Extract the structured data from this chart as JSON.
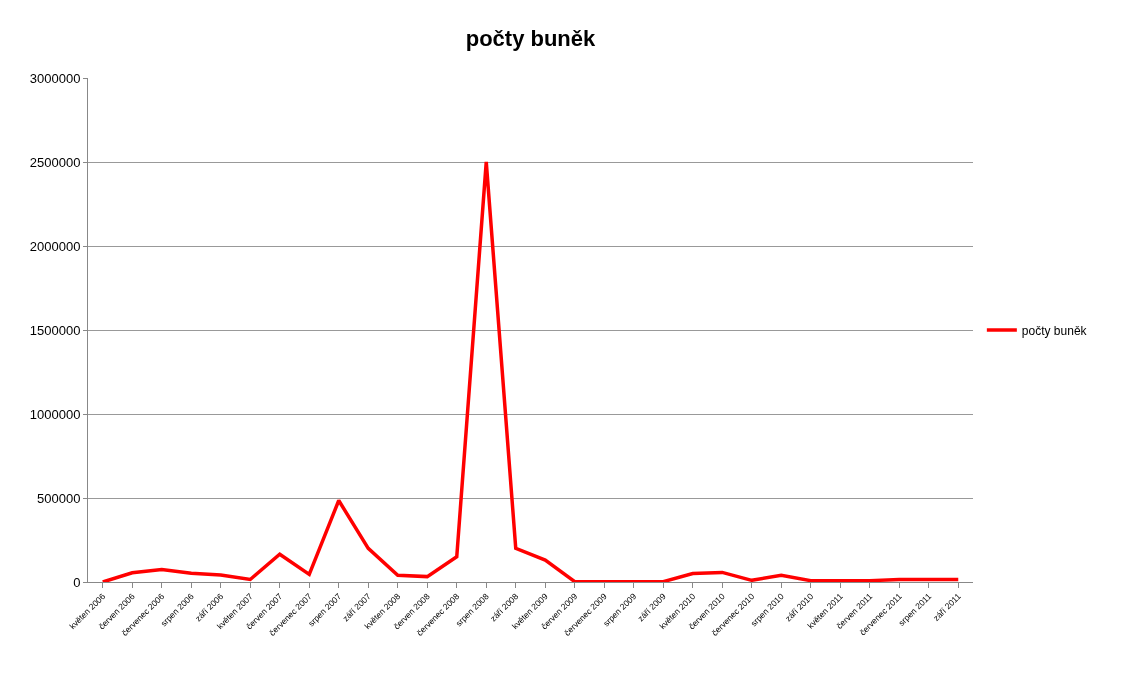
{
  "chart_data": {
    "type": "line",
    "title": "počty buněk",
    "categories": [
      "květen 2006",
      "červen 2006",
      "červenec 2006",
      "srpen 2006",
      "září 2006",
      "květen 2007",
      "červen 2007",
      "červenec 2007",
      "srpen 2007",
      "září 2007",
      "květen 2008",
      "červen 2008",
      "červenec 2008",
      "srpen 2008",
      "září 2008",
      "květen 2009",
      "červen 2009",
      "červenec 2009",
      "srpen 2009",
      "září 2009",
      "květen 2010",
      "červen 2010",
      "červenec 2010",
      "srpen 2010",
      "září 2010",
      "květen 2011",
      "červen 2011",
      "červenec 2011",
      "srpen 2011",
      "září 2011"
    ],
    "series": [
      {
        "name": "počty buněk",
        "color": "#ff0000",
        "values": [
          0,
          55000,
          75000,
          52000,
          42000,
          15000,
          165000,
          45000,
          485000,
          200000,
          40000,
          32000,
          150000,
          2500000,
          200000,
          130000,
          2000,
          2000,
          2000,
          2000,
          50000,
          57000,
          10000,
          40000,
          8000,
          8000,
          8000,
          15000,
          15000,
          15000
        ]
      }
    ],
    "ylim": [
      0,
      3000000
    ],
    "yticks": [
      0,
      500000,
      1000000,
      1500000,
      2000000,
      2500000,
      3000000
    ],
    "grid": "y",
    "legend": "right",
    "marker": "none",
    "line_style": "solid"
  }
}
